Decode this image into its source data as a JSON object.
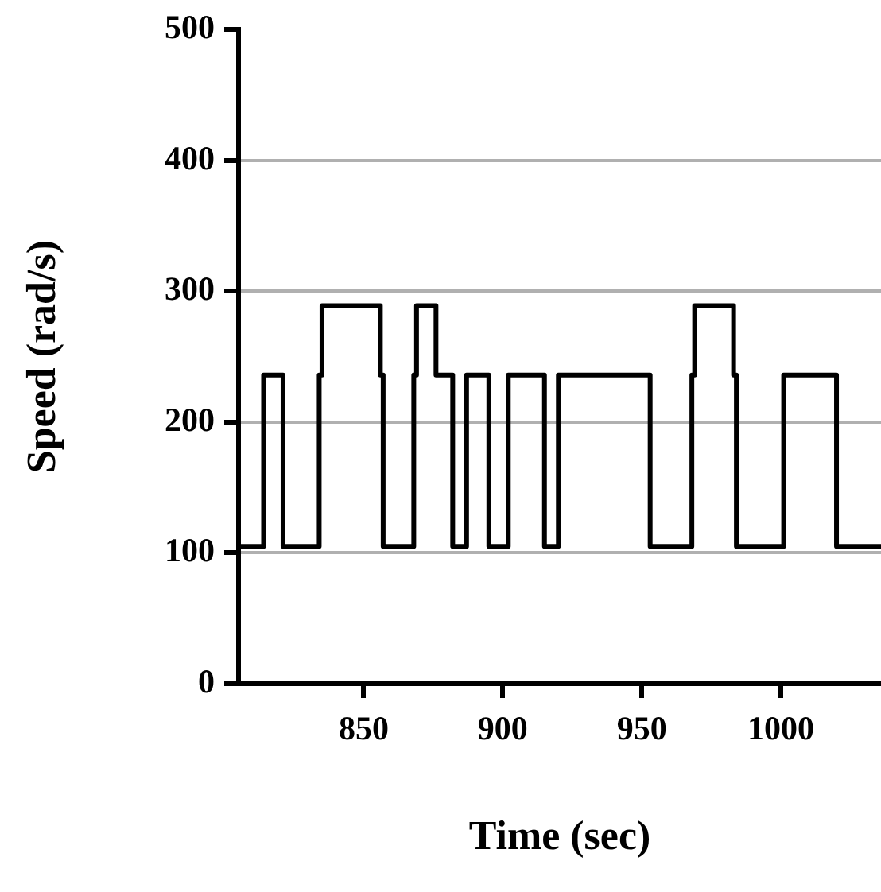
{
  "chart_data": {
    "type": "step",
    "xlabel": "Time (sec)",
    "ylabel": "Speed (rad/s)",
    "x": [
      805,
      814,
      821,
      834,
      835,
      856,
      857,
      868,
      869,
      876,
      882,
      887,
      895,
      902,
      915,
      920,
      953,
      968,
      969,
      983,
      984,
      1001,
      1020,
      1036
    ],
    "values": [
      105,
      236,
      105,
      236,
      289,
      236,
      105,
      236,
      289,
      236,
      105,
      236,
      105,
      236,
      105,
      236,
      105,
      236,
      289,
      236,
      105,
      236,
      105,
      105
    ],
    "color": "#000000",
    "xlim": [
      805,
      1036
    ],
    "xticks": [
      850,
      900,
      950,
      1000
    ],
    "ylim": [
      0,
      500
    ],
    "yticks": [
      0,
      100,
      200,
      300,
      400,
      500
    ],
    "grid": "y",
    "line_style": "solid",
    "marker": "none"
  }
}
